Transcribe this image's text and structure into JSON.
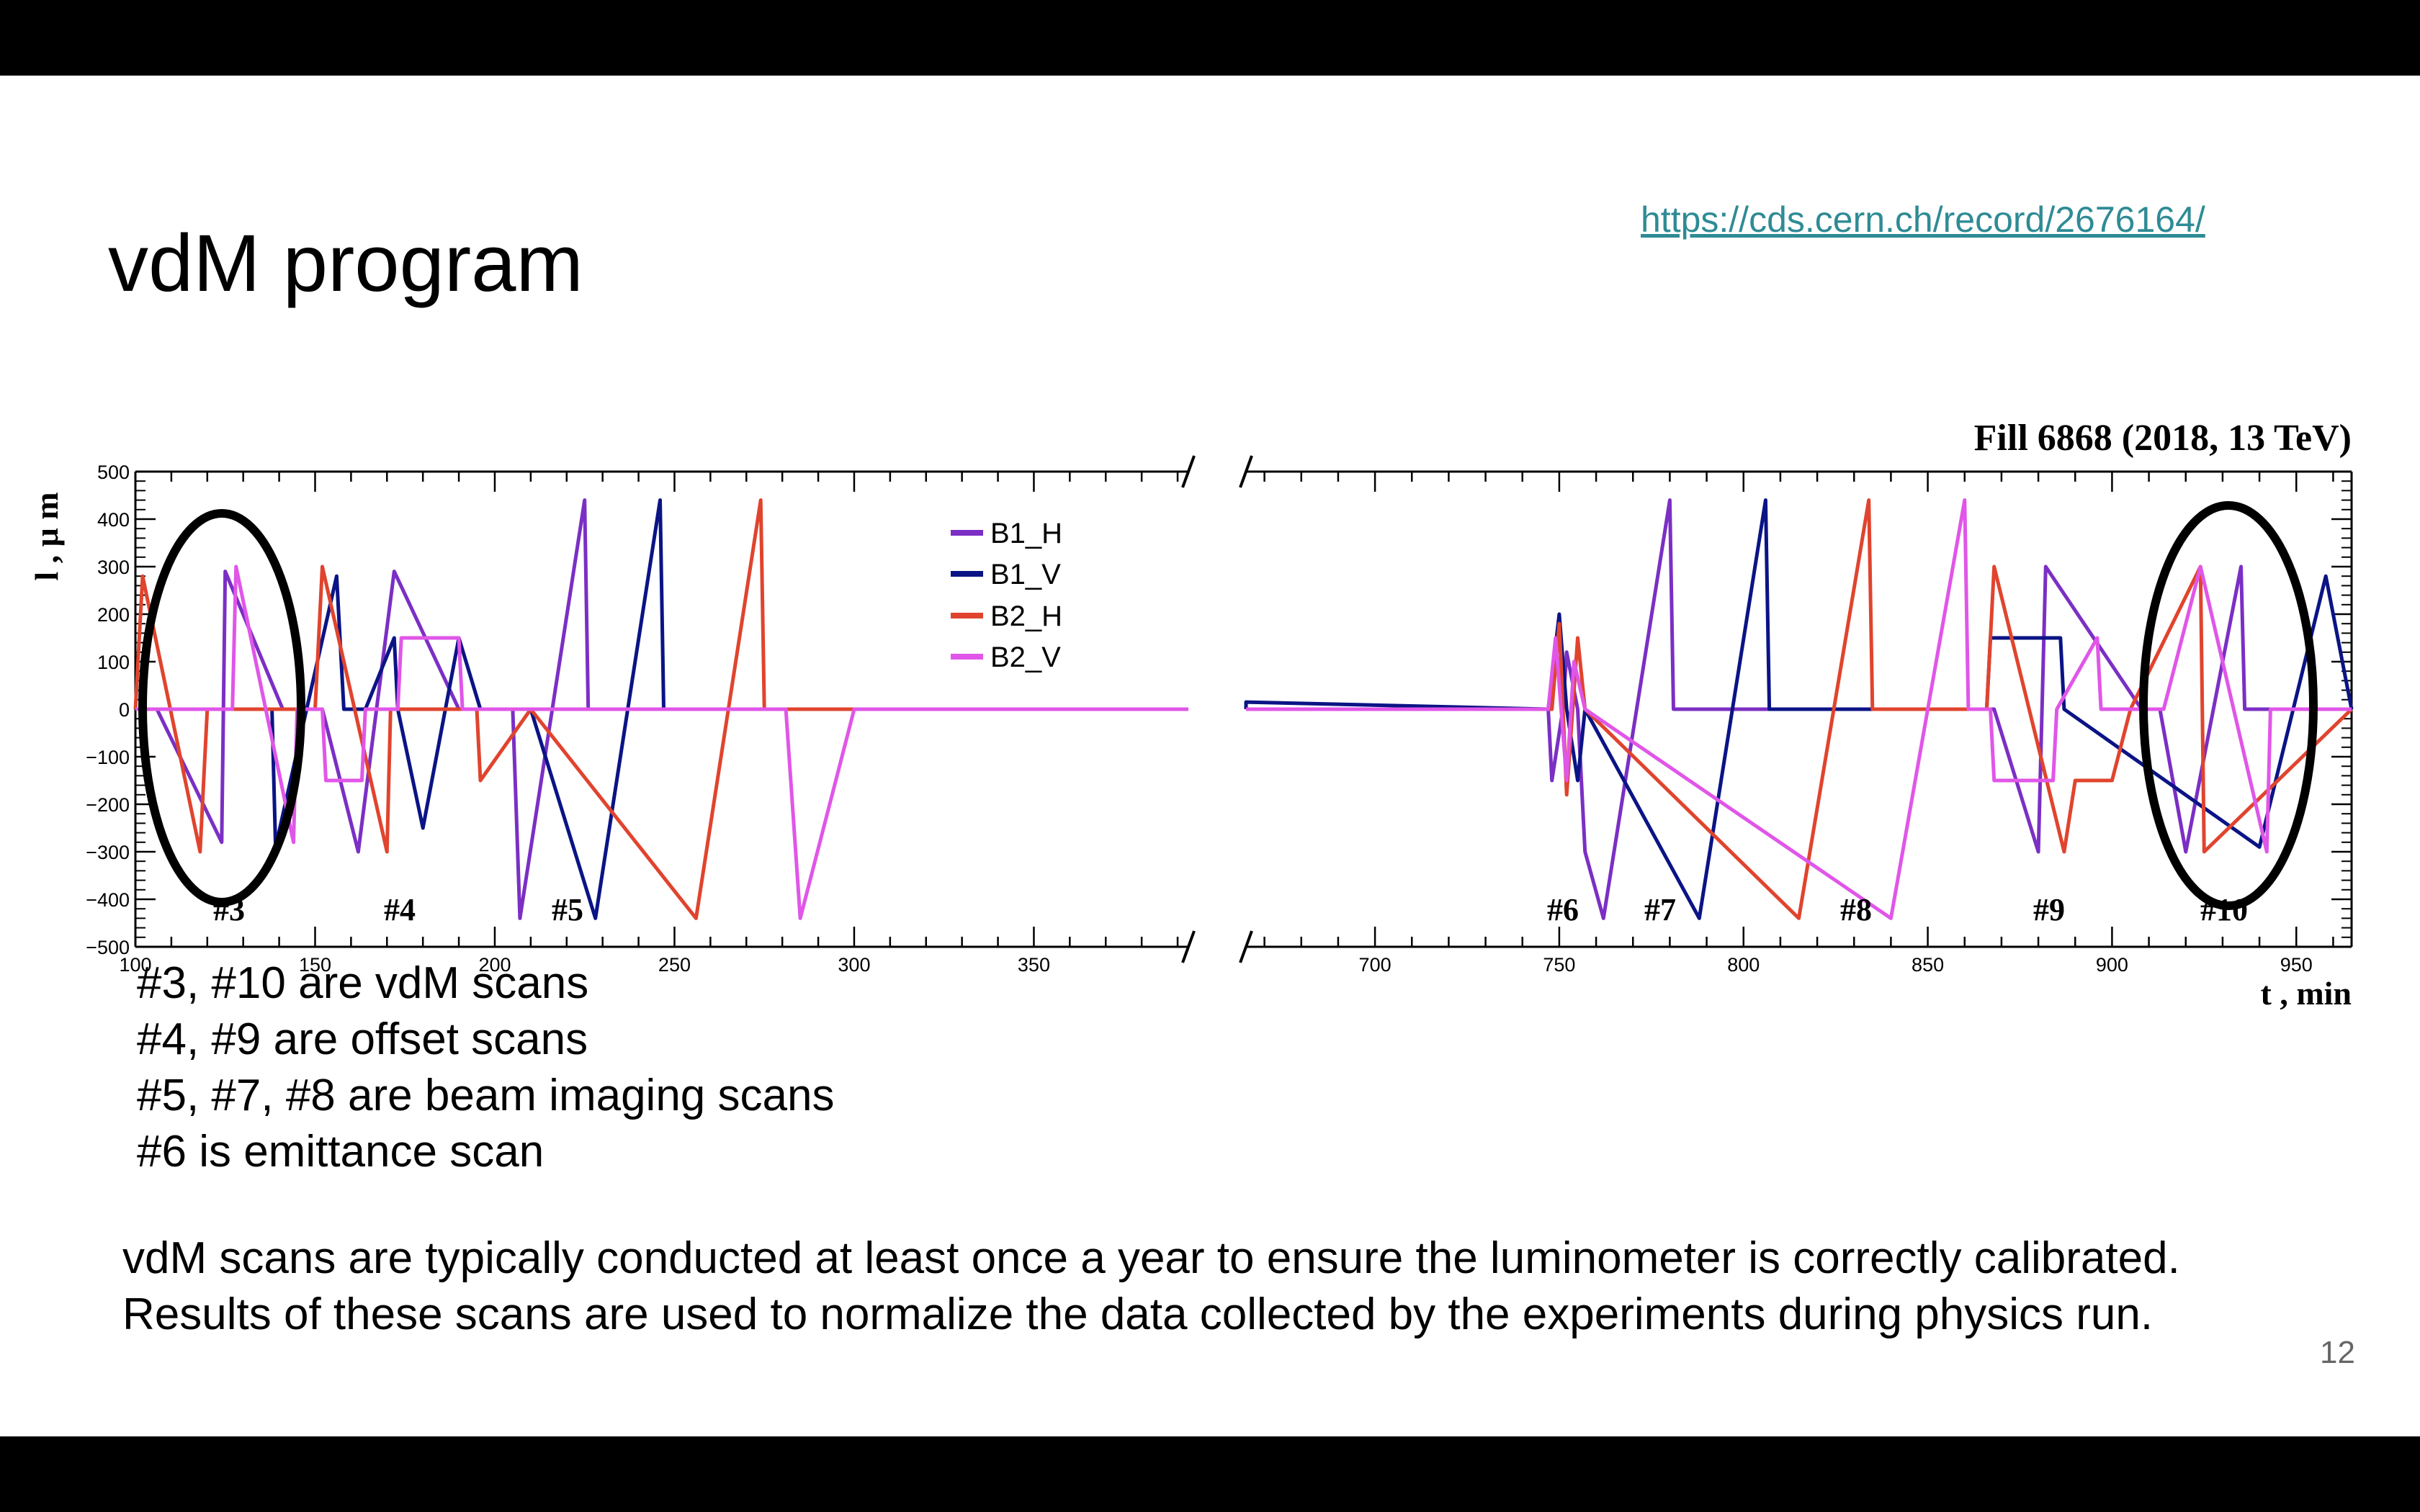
{
  "slide": {
    "title": "vdM program",
    "link_text": "https://cds.cern.ch/record/2676164/",
    "bullets": [
      "#3, #10 are vdM scans",
      "#4, #9 are offset scans",
      "#5, #7, #8 are beam imaging scans",
      "#6 is emittance scan"
    ],
    "paragraph": [
      "vdM scans are typically conducted at least once a year to ensure the luminometer is correctly calibrated.",
      "Results of these scans are used to normalize the data collected by the experiments during physics run."
    ],
    "page_number": "12"
  },
  "chart_data": {
    "type": "line",
    "title": "Fill 6868 (2018, 13 TeV)",
    "xlabel": "t , min",
    "ylabel": "l ,  μ m",
    "ylim": [
      -500,
      500
    ],
    "y_ticks": [
      500,
      400,
      300,
      200,
      100,
      0,
      -100,
      -200,
      -300,
      -400,
      -500
    ],
    "x_segments": [
      {
        "xlim": [
          100,
          393
        ],
        "ticks": [
          100,
          150,
          200,
          250,
          300,
          350
        ]
      },
      {
        "xlim": [
          665,
          965
        ],
        "ticks": [
          700,
          750,
          800,
          850,
          900,
          950
        ]
      }
    ],
    "legend": {
      "position": "top-center",
      "entries": [
        "B1_H",
        "B1_V",
        "B2_H",
        "B2_V"
      ]
    },
    "series": [
      {
        "name": "B1_H",
        "color": "#7b2fc4",
        "x": [
          100,
          106,
          124,
          125,
          141,
          150,
          152,
          162,
          172,
          190,
          197,
          205,
          207,
          225,
          226,
          235,
          680,
          747,
          748,
          751,
          752,
          755,
          757,
          762,
          780,
          781,
          792,
          866,
          868,
          880,
          882,
          908,
          913,
          920,
          935,
          936,
          965
        ],
        "y": [
          0,
          0,
          -280,
          290,
          0,
          0,
          0,
          -300,
          290,
          0,
          0,
          0,
          -440,
          440,
          0,
          0,
          0,
          0,
          -150,
          0,
          120,
          0,
          -300,
          -440,
          440,
          0,
          0,
          0,
          0,
          -300,
          300,
          0,
          0,
          -300,
          300,
          0,
          0
        ]
      },
      {
        "name": "B1_V",
        "color": "#0a1485",
        "x": [
          100,
          138,
          139,
          156,
          158,
          164,
          172,
          173,
          180,
          190,
          196,
          210,
          228,
          246,
          247,
          260,
          665,
          747,
          750,
          752,
          755,
          757,
          788,
          806,
          807,
          820,
          866,
          867,
          886,
          887,
          940,
          958,
          965
        ],
        "y": [
          0,
          0,
          -290,
          280,
          0,
          0,
          150,
          0,
          -250,
          150,
          0,
          0,
          -440,
          440,
          0,
          0,
          15,
          0,
          200,
          0,
          -150,
          0,
          -440,
          440,
          0,
          0,
          0,
          150,
          150,
          0,
          -290,
          280,
          0
        ]
      },
      {
        "name": "B2_H",
        "color": "#e0442e",
        "x": [
          100,
          102,
          118,
          120,
          150,
          152,
          170,
          171,
          178,
          195,
          196,
          210,
          256,
          274,
          275,
          290,
          665,
          748,
          750,
          752,
          755,
          757,
          815,
          834,
          835,
          850,
          866,
          868,
          887,
          890,
          900,
          905,
          924,
          925,
          965
        ],
        "y": [
          0,
          280,
          -300,
          0,
          0,
          300,
          -300,
          0,
          0,
          0,
          -150,
          0,
          -440,
          440,
          0,
          0,
          0,
          0,
          180,
          -180,
          150,
          0,
          -440,
          440,
          0,
          0,
          0,
          300,
          -300,
          -150,
          -150,
          0,
          300,
          -300,
          0
        ]
      },
      {
        "name": "B2_V",
        "color": "#e056e8",
        "x": [
          100,
          127,
          128,
          144,
          145,
          152,
          153,
          163,
          164,
          173,
          174,
          190,
          191,
          270,
          281,
          285,
          300,
          680,
          747,
          749,
          752,
          754,
          757,
          840,
          860,
          861,
          867,
          868,
          884,
          885,
          896,
          897,
          910,
          914,
          924,
          942,
          943,
          965
        ],
        "y": [
          0,
          0,
          300,
          -280,
          0,
          0,
          -150,
          -150,
          0,
          0,
          150,
          150,
          0,
          0,
          0,
          -440,
          0,
          0,
          0,
          150,
          -150,
          100,
          0,
          -440,
          440,
          0,
          0,
          -150,
          -150,
          0,
          150,
          0,
          0,
          0,
          300,
          -300,
          0,
          0
        ]
      }
    ],
    "annotations": [
      "#3",
      "#4",
      "#5",
      "#6",
      "#7",
      "#8",
      "#9",
      "#10"
    ]
  }
}
